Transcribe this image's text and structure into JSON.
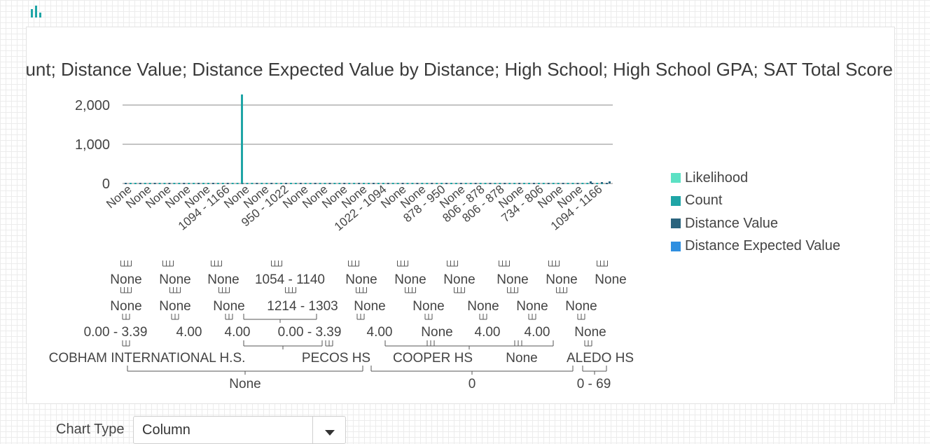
{
  "chart_data": {
    "type": "bar",
    "title": "Likelihood; Count; Distance Value; Distance Expected Value by Distance; High School; High School GPA; SAT Total Score",
    "y_ticks": [
      "2,000",
      "1,000",
      "0"
    ],
    "ylim": [
      0,
      2300
    ],
    "grid": true,
    "legend_position": "right",
    "series": [
      {
        "name": "Likelihood",
        "color": "#5ce1c4"
      },
      {
        "name": "Count",
        "color": "#1fa5a6",
        "spike": {
          "category_index": 15,
          "value": 2270
        }
      },
      {
        "name": "Distance Value",
        "color": "#2a647e"
      },
      {
        "name": "Distance Expected Value",
        "color": "#2f8fe0"
      }
    ],
    "x_labels": [
      "None",
      "None",
      "None",
      "None",
      "None",
      "1094 - 1166",
      "None",
      "None",
      "950 - 1022",
      "None",
      "None",
      "None",
      "None",
      "1022 - 1094",
      "None",
      "None",
      "878 - 950",
      "None",
      "806 - 878",
      "806 - 878",
      "None",
      "734 - 806",
      "None",
      "None",
      "1094 - 1166"
    ],
    "hierarchy": {
      "level1": [
        "None",
        "None",
        "None",
        "1054 - 1140",
        "None",
        "None",
        "None",
        "None",
        "None",
        "None"
      ],
      "level2": [
        "None",
        "None",
        "None",
        "1214 - 1303",
        "None",
        "None",
        "None",
        "None",
        "None"
      ],
      "level3": [
        "0.00 - 3.39",
        "4.00",
        "4.00",
        "0.00 - 3.39",
        "4.00",
        "None",
        "4.00",
        "4.00",
        "None"
      ],
      "level4": [
        "COBHAM INTERNATIONAL H.S.",
        "PECOS HS",
        "COOPER HS",
        "None",
        "ALEDO HS"
      ],
      "level5": [
        "None",
        "0",
        "0 - 69"
      ]
    }
  },
  "controls": {
    "chart_type_label": "Chart Type",
    "chart_type_value": "Column"
  }
}
